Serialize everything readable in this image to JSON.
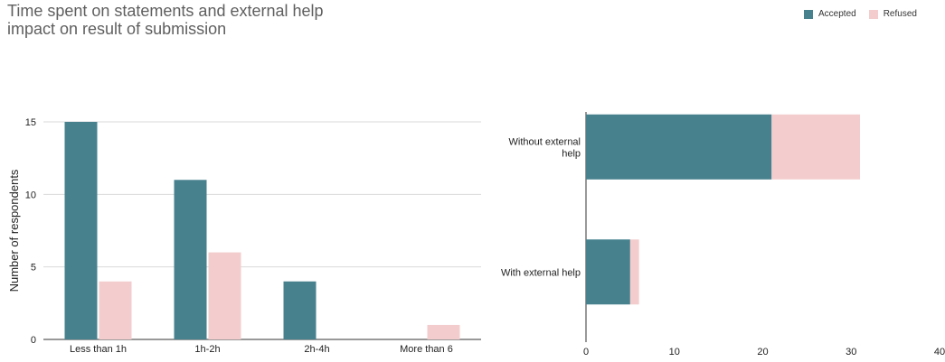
{
  "title": "Time spent on statements and external help impact on result of submission",
  "title_lines": [
    "Time spent on statements and external help",
    "impact on result of submission"
  ],
  "legend": [
    {
      "label": "Accepted",
      "color": "#47818e"
    },
    {
      "label": "Refused",
      "color": "#f3cdcd"
    }
  ],
  "chart_data": [
    {
      "type": "bar",
      "categories": [
        "Less than 1h",
        "1h-2h",
        "2h-4h",
        "More than 6"
      ],
      "series": [
        {
          "name": "Accepted",
          "values": [
            15,
            11,
            4,
            0
          ]
        },
        {
          "name": "Refused",
          "values": [
            4,
            6,
            0,
            1
          ]
        }
      ],
      "ylabel": "Number of respondents",
      "xlabel": "",
      "ylim": [
        0,
        15
      ],
      "yticks": [
        0,
        5,
        10,
        15
      ],
      "grid": true
    },
    {
      "type": "bar",
      "orientation": "horizontal",
      "stacked": true,
      "categories": [
        "Without external help",
        "With external help"
      ],
      "category_lines": [
        [
          "Without external",
          "help"
        ],
        [
          "With external help"
        ]
      ],
      "series": [
        {
          "name": "Accepted",
          "values": [
            21,
            5
          ]
        },
        {
          "name": "Refused",
          "values": [
            10,
            1
          ]
        }
      ],
      "xlim": [
        0,
        40
      ],
      "xticks": [
        0,
        10,
        20,
        30,
        40
      ],
      "grid": false
    }
  ]
}
